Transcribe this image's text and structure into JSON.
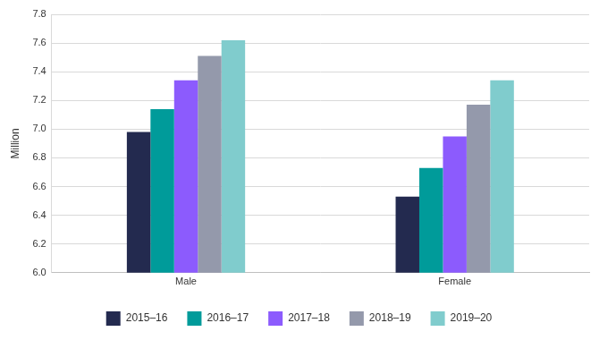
{
  "chart_data": {
    "type": "bar",
    "y_label": "Million",
    "categories": [
      "Male",
      "Female"
    ],
    "series": [
      {
        "name": "2015–16",
        "color": "#232a4f",
        "values": [
          6.98,
          6.53
        ]
      },
      {
        "name": "2016–17",
        "color": "#009b9a",
        "values": [
          7.14,
          6.73
        ]
      },
      {
        "name": "2017–18",
        "color": "#8c5bfd",
        "values": [
          7.34,
          6.95
        ]
      },
      {
        "name": "2018–19",
        "color": "#9499ab",
        "values": [
          7.51,
          7.17
        ]
      },
      {
        "name": "2019–20",
        "color": "#80cccd",
        "values": [
          7.62,
          7.34
        ]
      }
    ],
    "ylim": [
      6.0,
      7.8
    ],
    "yticks": [
      {
        "value": 6,
        "label": "6.0"
      },
      6.2,
      6.4,
      6.6,
      6.8,
      {
        "value": 7,
        "label": "7.0"
      },
      7.2,
      7.4,
      7.6,
      7.8
    ],
    "grid": true,
    "legend": "bottom"
  }
}
